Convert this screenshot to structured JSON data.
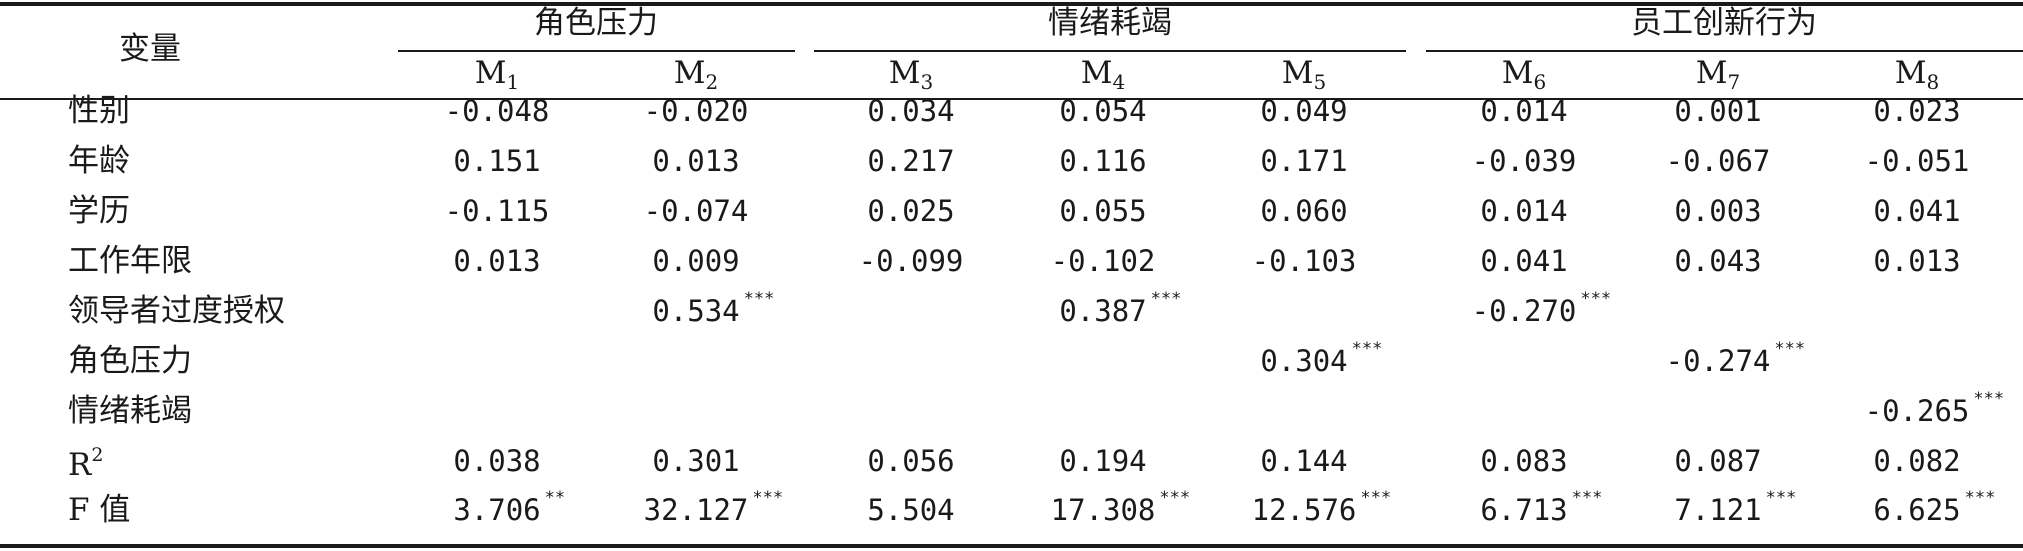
{
  "header": {
    "var_label": "变量",
    "groups": [
      "角色压力",
      "情绪耗竭",
      "员工创新行为"
    ],
    "models": [
      {
        "letter": "M",
        "sub": "1"
      },
      {
        "letter": "M",
        "sub": "2"
      },
      {
        "letter": "M",
        "sub": "3"
      },
      {
        "letter": "M",
        "sub": "4"
      },
      {
        "letter": "M",
        "sub": "5"
      },
      {
        "letter": "M",
        "sub": "6"
      },
      {
        "letter": "M",
        "sub": "7"
      },
      {
        "letter": "M",
        "sub": "8"
      }
    ]
  },
  "rows": [
    {
      "label": "性别",
      "values": [
        "-0.048",
        "-0.020",
        "0.034",
        "0.054",
        "0.049",
        "0.014",
        "0.001",
        "0.023"
      ],
      "stars": [
        "",
        "",
        "",
        "",
        "",
        "",
        "",
        ""
      ]
    },
    {
      "label": "年龄",
      "values": [
        "0.151",
        "0.013",
        "0.217",
        "0.116",
        "0.171",
        "-0.039",
        "-0.067",
        "-0.051"
      ],
      "stars": [
        "",
        "",
        "",
        "",
        "",
        "",
        "",
        ""
      ]
    },
    {
      "label": "学历",
      "values": [
        "-0.115",
        "-0.074",
        "0.025",
        "0.055",
        "0.060",
        "0.014",
        "0.003",
        "0.041"
      ],
      "stars": [
        "",
        "",
        "",
        "",
        "",
        "",
        "",
        ""
      ]
    },
    {
      "label": "工作年限",
      "values": [
        "0.013",
        "0.009",
        "-0.099",
        "-0.102",
        "-0.103",
        "0.041",
        "0.043",
        "0.013"
      ],
      "stars": [
        "",
        "",
        "",
        "",
        "",
        "",
        "",
        ""
      ]
    },
    {
      "label": "领导者过度授权",
      "values": [
        "",
        "0.534",
        "",
        "0.387",
        "",
        "-0.270",
        "",
        ""
      ],
      "stars": [
        "",
        "***",
        "",
        "***",
        "",
        "***",
        "",
        ""
      ]
    },
    {
      "label": "角色压力",
      "values": [
        "",
        "",
        "",
        "",
        "0.304",
        "",
        "-0.274",
        ""
      ],
      "stars": [
        "",
        "",
        "",
        "",
        "***",
        "",
        "***",
        ""
      ]
    },
    {
      "label": "情绪耗竭",
      "values": [
        "",
        "",
        "",
        "",
        "",
        "",
        "",
        "-0.265"
      ],
      "stars": [
        "",
        "",
        "",
        "",
        "",
        "",
        "",
        "***"
      ]
    },
    {
      "label": "R",
      "label_sup": "2",
      "values": [
        "0.038",
        "0.301",
        "0.056",
        "0.194",
        "0.144",
        "0.083",
        "0.087",
        "0.082"
      ],
      "stars": [
        "",
        "",
        "",
        "",
        "",
        "",
        "",
        ""
      ]
    },
    {
      "label": "F 值",
      "values": [
        "3.706",
        "32.127",
        "5.504",
        "17.308",
        "12.576",
        "6.713",
        "7.121",
        "6.625"
      ],
      "stars": [
        "**",
        "***",
        "",
        "***",
        "***",
        "***",
        "***",
        "***"
      ]
    }
  ]
}
